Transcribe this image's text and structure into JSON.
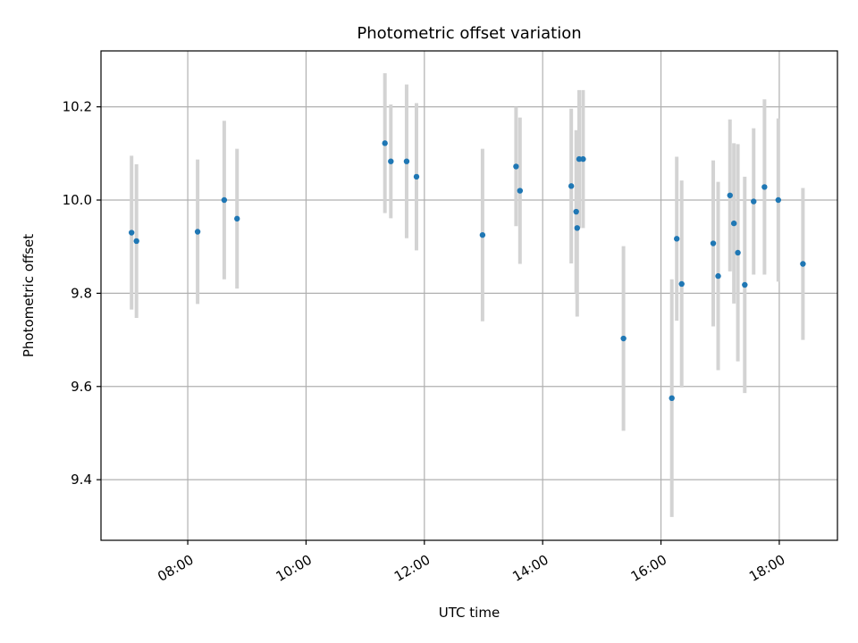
{
  "chart_data": {
    "type": "scatter",
    "title": "Photometric offset variation",
    "xlabel": "UTC time",
    "ylabel": "Photometric offset",
    "x_tick_labels": [
      "08:00",
      "10:00",
      "12:00",
      "14:00",
      "16:00",
      "18:00"
    ],
    "y_tick_labels": [
      "9.4",
      "9.6",
      "9.8",
      "10.0",
      "10.2"
    ],
    "x_ticks": [
      "08:00",
      "10:00",
      "12:00",
      "14:00",
      "16:00",
      "18:00"
    ],
    "y_ticks": [
      9.4,
      9.6,
      9.8,
      10.0,
      10.2
    ],
    "xlim": [
      "06:32",
      "18:59"
    ],
    "ylim": [
      9.27,
      10.32
    ],
    "grid": true,
    "marker_color": "#1f77b4",
    "errorbar_color": "#d3d3d3",
    "points": [
      {
        "t": "07:03",
        "y": 9.93,
        "err": 0.165
      },
      {
        "t": "07:08",
        "y": 9.912,
        "err": 0.165
      },
      {
        "t": "08:10",
        "y": 9.932,
        "err": 0.155
      },
      {
        "t": "08:37",
        "y": 10.0,
        "err": 0.17
      },
      {
        "t": "08:50",
        "y": 9.96,
        "err": 0.15
      },
      {
        "t": "11:20",
        "y": 10.122,
        "err": 0.15
      },
      {
        "t": "11:26",
        "y": 10.083,
        "err": 0.122
      },
      {
        "t": "11:42",
        "y": 10.083,
        "err": 0.165
      },
      {
        "t": "11:52",
        "y": 10.05,
        "err": 0.158
      },
      {
        "t": "12:59",
        "y": 9.925,
        "err": 0.185
      },
      {
        "t": "13:33",
        "y": 10.072,
        "err": 0.128
      },
      {
        "t": "13:37",
        "y": 10.02,
        "err": 0.157
      },
      {
        "t": "14:29",
        "y": 10.03,
        "err": 0.166
      },
      {
        "t": "14:34",
        "y": 9.975,
        "err": 0.175
      },
      {
        "t": "14:35",
        "y": 9.94,
        "err": 0.19
      },
      {
        "t": "14:37",
        "y": 10.088,
        "err": 0.148
      },
      {
        "t": "14:41",
        "y": 10.088,
        "err": 0.148
      },
      {
        "t": "15:22",
        "y": 9.703,
        "err": 0.198
      },
      {
        "t": "16:11",
        "y": 9.575,
        "err": 0.255
      },
      {
        "t": "16:16",
        "y": 9.917,
        "err": 0.176
      },
      {
        "t": "16:21",
        "y": 9.82,
        "err": 0.222
      },
      {
        "t": "16:53",
        "y": 9.907,
        "err": 0.178
      },
      {
        "t": "16:58",
        "y": 9.837,
        "err": 0.202
      },
      {
        "t": "17:10",
        "y": 10.01,
        "err": 0.163
      },
      {
        "t": "17:14",
        "y": 9.95,
        "err": 0.172
      },
      {
        "t": "17:18",
        "y": 9.887,
        "err": 0.233
      },
      {
        "t": "17:25",
        "y": 9.818,
        "err": 0.232
      },
      {
        "t": "17:34",
        "y": 9.997,
        "err": 0.157
      },
      {
        "t": "17:45",
        "y": 10.028,
        "err": 0.188
      },
      {
        "t": "17:59",
        "y": 10.0,
        "err": 0.175
      },
      {
        "t": "18:24",
        "y": 9.863,
        "err": 0.163
      }
    ]
  }
}
